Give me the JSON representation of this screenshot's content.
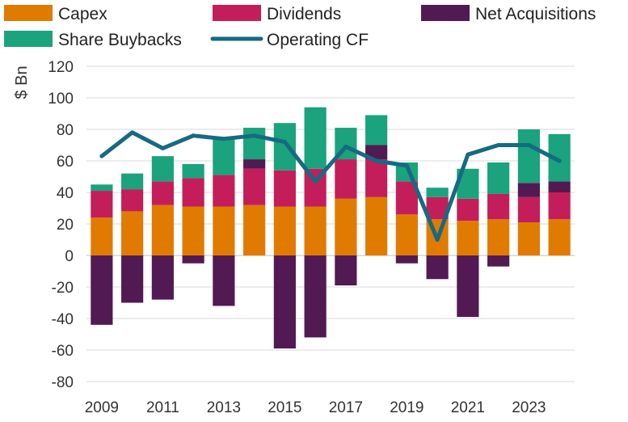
{
  "chart_data": {
    "type": "bar",
    "title": "",
    "xlabel": "",
    "ylabel": "$ Bn",
    "ylim": [
      -80,
      120
    ],
    "yticks": [
      "-80",
      "-60",
      "-40",
      "-20",
      "0",
      "20",
      "40",
      "60",
      "80",
      "100",
      "120"
    ],
    "xticks": [
      "2009",
      "2011",
      "2013",
      "2015",
      "2017",
      "2019",
      "2021",
      "2023"
    ],
    "categories": [
      "2009",
      "2010",
      "2011",
      "2012",
      "2013",
      "2014",
      "2015",
      "2016",
      "2017",
      "2018",
      "2019",
      "2020",
      "2021",
      "2022",
      "2023",
      "2024"
    ],
    "grid": true,
    "legend_position": "top",
    "series": [
      {
        "name": "Capex",
        "kind": "bar",
        "color": "#e07b00",
        "values": [
          24,
          28,
          32,
          31,
          31,
          32,
          31,
          31,
          36,
          37,
          26,
          23,
          22,
          23,
          21,
          23
        ]
      },
      {
        "name": "Dividends",
        "kind": "bar",
        "color": "#c41e5a",
        "values": [
          17,
          14,
          15,
          18,
          20,
          23,
          23,
          24,
          25,
          24,
          21,
          14,
          14,
          16,
          16,
          17
        ]
      },
      {
        "name": "Net Acquisitions",
        "kind": "bar",
        "color": "#521a52",
        "values": [
          -44,
          -30,
          -28,
          -5,
          -32,
          6,
          -59,
          -52,
          -19,
          9,
          -5,
          -15,
          -39,
          -7,
          9,
          7
        ]
      },
      {
        "name": "Share Buybacks",
        "kind": "bar",
        "color": "#1aa37c",
        "values": [
          4,
          10,
          16,
          9,
          23,
          20,
          30,
          39,
          20,
          19,
          12,
          6,
          19,
          20,
          34,
          30
        ]
      },
      {
        "name": "Operating CF",
        "kind": "line",
        "color": "#166a82",
        "values": [
          63,
          78,
          68,
          76,
          74,
          76,
          72,
          47,
          69,
          60,
          57,
          10,
          64,
          70,
          70,
          60
        ]
      }
    ]
  }
}
